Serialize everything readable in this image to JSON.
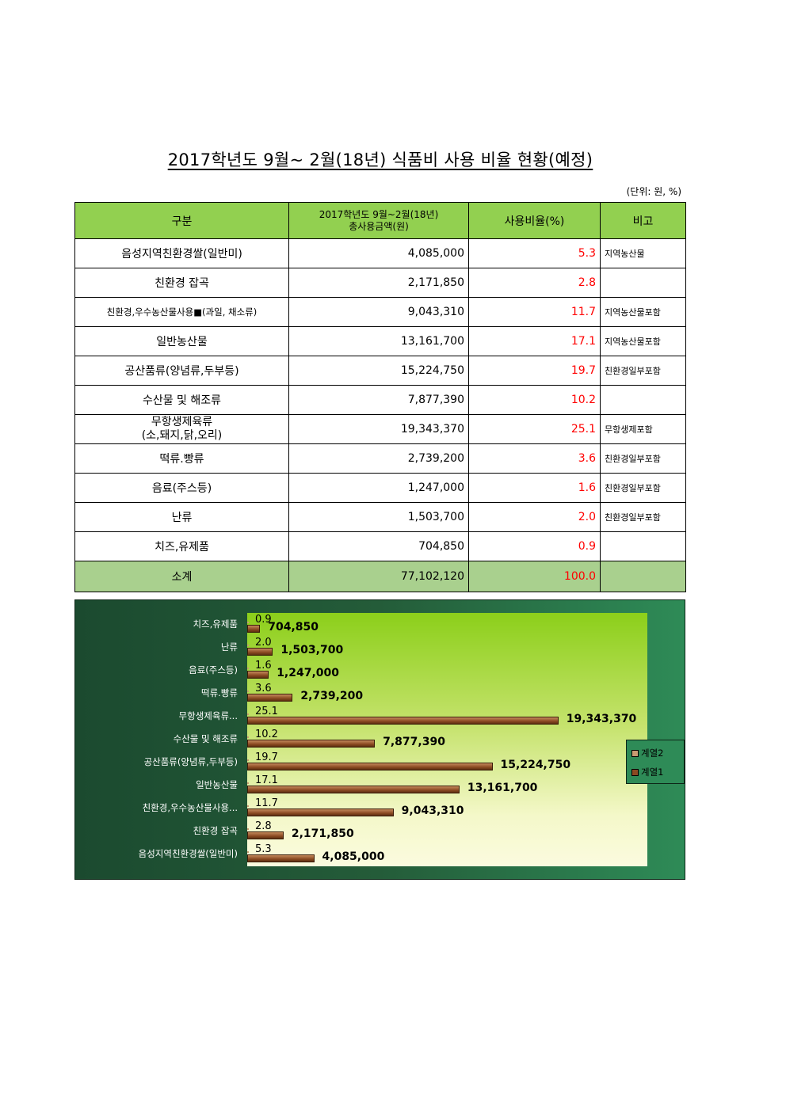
{
  "title": "2017학년도 9월~ 2월(18년) 식품비 사용 비율 현황(예정)",
  "unit": "(단위: 원, %)",
  "headers": {
    "category": "구분",
    "amount_line1": "2017학년도 9월~2월(18년)",
    "amount_line2": "총사용금액(원)",
    "ratio": "사용비율(%)",
    "note": "비고"
  },
  "rows": [
    {
      "category": "음성지역친환경쌀(일반미)",
      "amount": "4,085,000",
      "ratio": "5.3",
      "note": "지역농산물"
    },
    {
      "category": "친환경 잡곡",
      "amount": "2,171,850",
      "ratio": "2.8",
      "note": ""
    },
    {
      "category": "친환경,우수농산물사용■(과일, 채소류)",
      "amount": "9,043,310",
      "ratio": "11.7",
      "note": "지역농산물포함"
    },
    {
      "category": "일반농산물",
      "amount": "13,161,700",
      "ratio": "17.1",
      "note": "지역농산물포함"
    },
    {
      "category": "공산품류(양념류,두부등)",
      "amount": "15,224,750",
      "ratio": "19.7",
      "note": "친환경일부포함"
    },
    {
      "category": "수산물 및 해조류",
      "amount": "7,877,390",
      "ratio": "10.2",
      "note": ""
    },
    {
      "category": "무항생제육류",
      "category_line2": "(소,돼지,닭,오리)",
      "amount": "19,343,370",
      "ratio": "25.1",
      "note": "무항생제포함"
    },
    {
      "category": "떡류.빵류",
      "amount": "2,739,200",
      "ratio": "3.6",
      "note": "친환경일부포함"
    },
    {
      "category": "음료(주스등)",
      "amount": "1,247,000",
      "ratio": "1.6",
      "note": "친환경일부포함"
    },
    {
      "category": "난류",
      "amount": "1,503,700",
      "ratio": "2.0",
      "note": "친환경일부포함"
    },
    {
      "category": "치즈,유제품",
      "amount": "704,850",
      "ratio": "0.9",
      "note": ""
    }
  ],
  "total": {
    "category": "소계",
    "amount": "77,102,120",
    "ratio": "100.0",
    "note": ""
  },
  "chart_data": {
    "type": "bar",
    "orientation": "horizontal",
    "categories": [
      "치즈,유제품",
      "난류",
      "음료(주스등)",
      "떡류.빵류",
      "무항생제육류...",
      "수산물 및 해조류",
      "공산품류(양념류,두부등)",
      "일반농산물",
      "친환경,우수농산물사용...",
      "친환경 잡곡",
      "음성지역친환경쌀(일반미)"
    ],
    "series": [
      {
        "name": "계열1",
        "values": [
          704850,
          1503700,
          1247000,
          2739200,
          19343370,
          7877390,
          15224750,
          13161700,
          9043310,
          2171850,
          4085000
        ],
        "labels": [
          "704,850",
          "1,503,700",
          "1,247,000",
          "2,739,200",
          "19,343,370",
          "7,877,390",
          "15,224,750",
          "13,161,700",
          "9,043,310",
          "2,171,850",
          "4,085,000"
        ]
      },
      {
        "name": "계열2",
        "values": [
          0.9,
          2.0,
          1.6,
          3.6,
          25.1,
          10.2,
          19.7,
          17.1,
          11.7,
          2.8,
          5.3
        ],
        "labels": [
          "0.9",
          "2.0",
          "1.6",
          "3.6",
          "25.1",
          "10.2",
          "19.7",
          "17.1",
          "11.7",
          "2.8",
          "5.3"
        ]
      }
    ],
    "legend": [
      "계열2",
      "계열1"
    ],
    "legend_position": "right",
    "colors": {
      "series1": "#8b4a22",
      "series2": "#c89b72",
      "ratio_text": "#ff0000",
      "header_bg": "#92d050",
      "total_bg": "#a9d08e"
    }
  }
}
